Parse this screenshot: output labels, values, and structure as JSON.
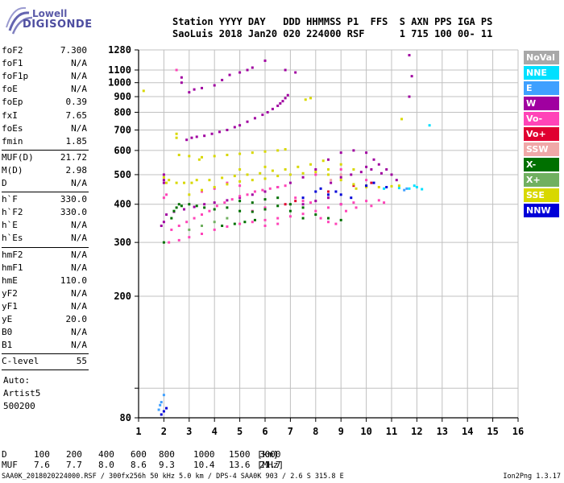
{
  "logo": {
    "line1": "Lowell",
    "line2": "DIGISONDE"
  },
  "header": {
    "line1": "Station YYYY DAY   DDD HHMMSS P1  FFS  S AXN PPS IGA PS",
    "line2": "SaoLuis 2018 Jan20 020 224000 RSF      1 715 100 00- 11"
  },
  "params": [
    {
      "label": "foF2",
      "value": "7.300",
      "sep_after": false
    },
    {
      "label": "foF1",
      "value": "N/A",
      "sep_after": false
    },
    {
      "label": "foF1p",
      "value": "N/A",
      "sep_after": false
    },
    {
      "label": "foE",
      "value": "N/A",
      "sep_after": false
    },
    {
      "label": "foEp",
      "value": "0.39",
      "sep_after": false
    },
    {
      "label": "fxI",
      "value": "7.65",
      "sep_after": false
    },
    {
      "label": "foEs",
      "value": "N/A",
      "sep_after": false
    },
    {
      "label": "fmin",
      "value": "1.85",
      "sep_after": true
    },
    {
      "label": "MUF(D)",
      "value": "21.72",
      "sep_after": false
    },
    {
      "label": "M(D)",
      "value": "2.98",
      "sep_after": false
    },
    {
      "label": "D",
      "value": "N/A",
      "sep_after": true
    },
    {
      "label": "h`F",
      "value": "330.0",
      "sep_after": false
    },
    {
      "label": "h`F2",
      "value": "330.0",
      "sep_after": false
    },
    {
      "label": "h`E",
      "value": "N/A",
      "sep_after": false
    },
    {
      "label": "h`Es",
      "value": "N/A",
      "sep_after": true
    },
    {
      "label": "hmF2",
      "value": "N/A",
      "sep_after": false
    },
    {
      "label": "hmF1",
      "value": "N/A",
      "sep_after": false
    },
    {
      "label": "hmE",
      "value": "110.0",
      "sep_after": false
    },
    {
      "label": "yF2",
      "value": "N/A",
      "sep_after": false
    },
    {
      "label": "yF1",
      "value": "N/A",
      "sep_after": false
    },
    {
      "label": "yE",
      "value": "20.0",
      "sep_after": false
    },
    {
      "label": "B0",
      "value": "N/A",
      "sep_after": false
    },
    {
      "label": "B1",
      "value": "N/A",
      "sep_after": true
    },
    {
      "label": "C-level",
      "value": "55",
      "sep_after": true
    }
  ],
  "autoscale": {
    "line1": "Auto:",
    "line2": "Artist5",
    "line3": "500200"
  },
  "chart_data": {
    "type": "scatter",
    "title": "",
    "xlabel": "",
    "ylabel": "",
    "xlim": [
      1,
      16
    ],
    "ylim": [
      80,
      1280
    ],
    "y_scale": "log",
    "x_ticks": [
      1,
      2,
      3,
      4,
      5,
      6,
      7,
      8,
      9,
      10,
      11,
      12,
      13,
      14,
      15,
      16
    ],
    "y_ticks": [
      80,
      100,
      200,
      300,
      400,
      500,
      600,
      700,
      800,
      900,
      1000,
      1100,
      1280
    ],
    "y_tick_labels": [
      "80",
      "",
      "200",
      "300",
      "400",
      "500",
      "600",
      "700",
      "800",
      "900",
      "1000",
      "1100",
      "1280"
    ],
    "grid": true,
    "legend_placement": "right",
    "series": [
      {
        "name": "NoVal",
        "color": "#a8a8a8",
        "points": []
      },
      {
        "name": "NNE",
        "color": "#00e0ff",
        "points": [
          [
            11.7,
            450
          ],
          [
            12.0,
            455
          ],
          [
            12.2,
            448
          ],
          [
            11.9,
            460
          ],
          [
            12.5,
            725
          ],
          [
            10.7,
            450
          ],
          [
            11.3,
            452
          ]
        ]
      },
      {
        "name": "E",
        "color": "#3fa0ff",
        "points": [
          [
            1.8,
            85
          ],
          [
            1.9,
            90
          ],
          [
            2.0,
            95
          ],
          [
            1.85,
            88
          ],
          [
            11.6,
            450
          ],
          [
            11.5,
            445
          ]
        ]
      },
      {
        "name": "W",
        "color": "#a000a0",
        "points": [
          [
            2.7,
            1040
          ],
          [
            2.7,
            1000
          ],
          [
            3.0,
            930
          ],
          [
            3.2,
            950
          ],
          [
            3.5,
            960
          ],
          [
            4.0,
            980
          ],
          [
            4.3,
            1020
          ],
          [
            4.6,
            1060
          ],
          [
            5.0,
            1080
          ],
          [
            5.3,
            1100
          ],
          [
            5.5,
            1120
          ],
          [
            6.0,
            1180
          ],
          [
            6.8,
            1100
          ],
          [
            7.2,
            1080
          ],
          [
            11.8,
            1050
          ],
          [
            11.7,
            1230
          ],
          [
            11.7,
            900
          ],
          [
            2.9,
            650
          ],
          [
            3.1,
            660
          ],
          [
            3.3,
            665
          ],
          [
            3.6,
            670
          ],
          [
            3.9,
            680
          ],
          [
            4.2,
            690
          ],
          [
            4.5,
            700
          ],
          [
            4.8,
            715
          ],
          [
            5.0,
            725
          ],
          [
            5.3,
            745
          ],
          [
            5.6,
            765
          ],
          [
            5.9,
            785
          ],
          [
            6.1,
            800
          ],
          [
            6.3,
            820
          ],
          [
            6.5,
            840
          ],
          [
            6.6,
            855
          ],
          [
            6.7,
            870
          ],
          [
            6.8,
            890
          ],
          [
            6.9,
            910
          ],
          [
            2.1,
            370
          ],
          [
            2.4,
            378
          ],
          [
            2.8,
            385
          ],
          [
            3.2,
            392
          ],
          [
            3.6,
            400
          ],
          [
            4.0,
            405
          ],
          [
            4.5,
            412
          ],
          [
            5.0,
            420
          ],
          [
            5.5,
            430
          ],
          [
            6.0,
            440
          ],
          [
            6.5,
            455
          ],
          [
            7.0,
            470
          ],
          [
            7.5,
            490
          ],
          [
            8.0,
            520
          ],
          [
            8.5,
            560
          ],
          [
            9.0,
            590
          ],
          [
            9.5,
            600
          ],
          [
            10.0,
            590
          ],
          [
            10.3,
            560
          ],
          [
            10.5,
            540
          ],
          [
            10.8,
            520
          ],
          [
            11.0,
            500
          ],
          [
            11.2,
            480
          ],
          [
            10.0,
            530
          ],
          [
            9.8,
            510
          ],
          [
            9.4,
            500
          ],
          [
            9.0,
            490
          ],
          [
            8.6,
            470
          ],
          [
            10.2,
            520
          ],
          [
            10.6,
            505
          ],
          [
            7.5,
            400
          ],
          [
            8.0,
            410
          ],
          [
            8.5,
            420
          ],
          [
            9.0,
            400
          ],
          [
            1.9,
            340
          ],
          [
            2.0,
            350
          ],
          [
            2.0,
            480
          ],
          [
            2.0,
            500
          ],
          [
            2.0,
            470
          ]
        ]
      },
      {
        "name": "Vo-",
        "color": "#ff44b8",
        "points": [
          [
            2.2,
            300
          ],
          [
            2.6,
            305
          ],
          [
            3.0,
            312
          ],
          [
            3.5,
            320
          ],
          [
            4.0,
            330
          ],
          [
            4.5,
            338
          ],
          [
            5.0,
            345
          ],
          [
            5.5,
            350
          ],
          [
            6.0,
            355
          ],
          [
            6.5,
            360
          ],
          [
            7.0,
            365
          ],
          [
            7.5,
            372
          ],
          [
            8.0,
            380
          ],
          [
            8.5,
            390
          ],
          [
            9.0,
            400
          ],
          [
            9.5,
            405
          ],
          [
            10.0,
            410
          ],
          [
            10.5,
            412
          ],
          [
            2.3,
            330
          ],
          [
            2.6,
            340
          ],
          [
            2.9,
            350
          ],
          [
            3.2,
            360
          ],
          [
            3.5,
            370
          ],
          [
            3.8,
            380
          ],
          [
            4.1,
            395
          ],
          [
            4.4,
            405
          ],
          [
            4.7,
            415
          ],
          [
            5.0,
            425
          ],
          [
            5.3,
            430
          ],
          [
            5.6,
            440
          ],
          [
            5.9,
            445
          ],
          [
            6.2,
            450
          ],
          [
            6.5,
            455
          ],
          [
            6.8,
            460
          ],
          [
            7.2,
            420
          ],
          [
            7.5,
            410
          ],
          [
            7.8,
            405
          ],
          [
            8.2,
            360
          ],
          [
            8.5,
            350
          ],
          [
            8.8,
            345
          ],
          [
            9.2,
            380
          ],
          [
            9.6,
            390
          ],
          [
            10.2,
            395
          ],
          [
            10.7,
            405
          ],
          [
            6.0,
            340
          ],
          [
            6.5,
            345
          ],
          [
            3.5,
            440
          ],
          [
            4.0,
            450
          ],
          [
            4.5,
            470
          ],
          [
            5.0,
            460
          ],
          [
            5.5,
            380
          ],
          [
            6.0,
            390
          ],
          [
            8.0,
            500
          ],
          [
            9.0,
            520
          ],
          [
            10.0,
            480
          ],
          [
            2.5,
            1100
          ],
          [
            2.0,
            420
          ],
          [
            2.1,
            430
          ]
        ]
      },
      {
        "name": "Vo+",
        "color": "#e00030",
        "points": [
          [
            6.8,
            400
          ],
          [
            7.2,
            410
          ],
          [
            8.5,
            440
          ],
          [
            9.5,
            460
          ],
          [
            10.2,
            470
          ]
        ]
      },
      {
        "name": "SSW",
        "color": "#f0a8a8",
        "points": [
          [
            9.0,
            500
          ],
          [
            8.6,
            480
          ]
        ]
      },
      {
        "name": "X-",
        "color": "#007000",
        "points": [
          [
            2.4,
            380
          ],
          [
            2.5,
            390
          ],
          [
            2.6,
            400
          ],
          [
            2.7,
            395
          ],
          [
            3.0,
            400
          ],
          [
            3.3,
            395
          ],
          [
            3.6,
            390
          ],
          [
            4.0,
            385
          ],
          [
            4.5,
            390
          ],
          [
            5.0,
            380
          ],
          [
            5.5,
            378
          ],
          [
            6.0,
            385
          ],
          [
            6.5,
            395
          ],
          [
            7.0,
            400
          ],
          [
            7.5,
            390
          ],
          [
            8.0,
            370
          ],
          [
            8.5,
            360
          ],
          [
            9.0,
            355
          ],
          [
            2.0,
            300
          ],
          [
            2.3,
            360
          ],
          [
            5.0,
            410
          ],
          [
            5.5,
            405
          ],
          [
            6.0,
            415
          ],
          [
            6.5,
            420
          ],
          [
            7.0,
            380
          ],
          [
            7.5,
            360
          ],
          [
            4.3,
            340
          ],
          [
            4.8,
            345
          ],
          [
            5.2,
            350
          ],
          [
            5.6,
            355
          ]
        ]
      },
      {
        "name": "X+",
        "color": "#70b060",
        "points": [
          [
            3.0,
            330
          ],
          [
            3.5,
            340
          ],
          [
            4.0,
            350
          ],
          [
            4.5,
            360
          ]
        ]
      },
      {
        "name": "SSE",
        "color": "#d8d800",
        "points": [
          [
            2.6,
            580
          ],
          [
            3.0,
            575
          ],
          [
            3.5,
            570
          ],
          [
            4.0,
            575
          ],
          [
            4.5,
            580
          ],
          [
            5.0,
            585
          ],
          [
            5.5,
            590
          ],
          [
            6.0,
            595
          ],
          [
            6.5,
            600
          ],
          [
            6.8,
            605
          ],
          [
            3.0,
            430
          ],
          [
            3.5,
            445
          ],
          [
            4.0,
            455
          ],
          [
            4.5,
            465
          ],
          [
            5.0,
            475
          ],
          [
            5.5,
            480
          ],
          [
            6.0,
            485
          ],
          [
            6.5,
            495
          ],
          [
            7.0,
            500
          ],
          [
            7.5,
            505
          ],
          [
            8.0,
            510
          ],
          [
            8.5,
            500
          ],
          [
            9.0,
            480
          ],
          [
            9.5,
            465
          ],
          [
            10.0,
            460
          ],
          [
            10.5,
            455
          ],
          [
            11.0,
            458
          ],
          [
            11.3,
            460
          ],
          [
            2.8,
            470
          ],
          [
            3.3,
            480
          ],
          [
            3.8,
            480
          ],
          [
            4.3,
            488
          ],
          [
            4.8,
            495
          ],
          [
            5.3,
            500
          ],
          [
            5.8,
            505
          ],
          [
            6.3,
            515
          ],
          [
            6.8,
            520
          ],
          [
            7.3,
            530
          ],
          [
            7.8,
            540
          ],
          [
            8.3,
            555
          ],
          [
            7.6,
            880
          ],
          [
            7.8,
            890
          ],
          [
            2.0,
            490
          ],
          [
            2.2,
            480
          ],
          [
            2.5,
            660
          ],
          [
            2.5,
            680
          ],
          [
            2.5,
            470
          ],
          [
            2.1,
            470
          ],
          [
            3.1,
            470
          ],
          [
            6.0,
            530
          ],
          [
            5.0,
            520
          ],
          [
            8.5,
            520
          ],
          [
            9.0,
            540
          ],
          [
            9.5,
            520
          ],
          [
            1.2,
            940
          ],
          [
            11.4,
            760
          ],
          [
            3.4,
            560
          ],
          [
            9.6,
            450
          ],
          [
            10.0,
            455
          ]
        ]
      },
      {
        "name": "NNW",
        "color": "#0000d8",
        "points": [
          [
            1.9,
            82
          ],
          [
            2.0,
            84
          ],
          [
            2.1,
            86
          ],
          [
            8.0,
            440
          ],
          [
            8.2,
            450
          ],
          [
            8.5,
            430
          ],
          [
            8.8,
            440
          ],
          [
            9.0,
            430
          ],
          [
            7.5,
            420
          ],
          [
            9.4,
            420
          ],
          [
            10.0,
            460
          ],
          [
            10.3,
            470
          ],
          [
            10.8,
            455
          ]
        ]
      }
    ]
  },
  "muf_table": {
    "d_label": "D",
    "d_values": [
      "100",
      "200",
      "400",
      "600",
      "800",
      "1000",
      "1500",
      "3000"
    ],
    "d_unit": "[km]",
    "muf_label": "MUF",
    "muf_values": [
      "7.6",
      "7.7",
      "8.0",
      "8.6",
      "9.3",
      "10.4",
      "13.6",
      "21.7"
    ],
    "muf_unit": "[MHz]"
  },
  "footer": {
    "left": "SAA0K_2018020224000.RSF / 300fx256h 50 kHz 5.0 km / DPS-4 SAA0K 903 / 2.6 S 315.8 E",
    "right": "Ion2Png 1.3.17"
  }
}
